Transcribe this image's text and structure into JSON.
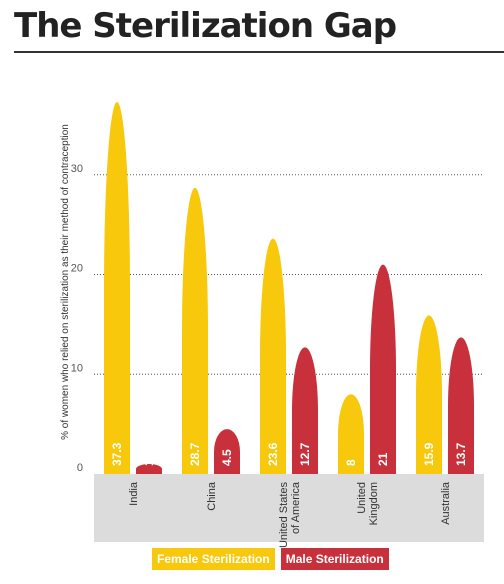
{
  "header": {
    "title": "The Sterilization Gap"
  },
  "colors": {
    "female": "#F7C80B",
    "male": "#C8313B",
    "axis_band": "#DCDCDC"
  },
  "chart_data": {
    "type": "bar",
    "title": "The Sterilization Gap",
    "xlabel": "",
    "ylabel": "% of women who relied on sterilization as their method of contraception",
    "ylim": [
      0,
      37.3
    ],
    "yticks": [
      "0",
      "10",
      "20",
      "30"
    ],
    "grid": true,
    "legend_position": "bottom",
    "categories": [
      "India",
      "China",
      "United States of America",
      "United Kingdom",
      "Australia"
    ],
    "category_lines": [
      [
        "India"
      ],
      [
        "China"
      ],
      [
        "United States",
        "of America"
      ],
      [
        "United",
        "Kingdom"
      ],
      [
        "Australia"
      ]
    ],
    "series": [
      {
        "name": "Female Sterilization",
        "values": [
          37.3,
          28.7,
          23.6,
          8,
          15.9
        ],
        "labels": [
          "37.3",
          "28.7",
          "23.6",
          "8",
          "15.9"
        ]
      },
      {
        "name": "Male Sterilization",
        "values": [
          1,
          4.5,
          12.7,
          21,
          13.7
        ],
        "labels": [
          "1",
          "4.5",
          "12.7",
          "21",
          "13.7"
        ]
      }
    ]
  }
}
